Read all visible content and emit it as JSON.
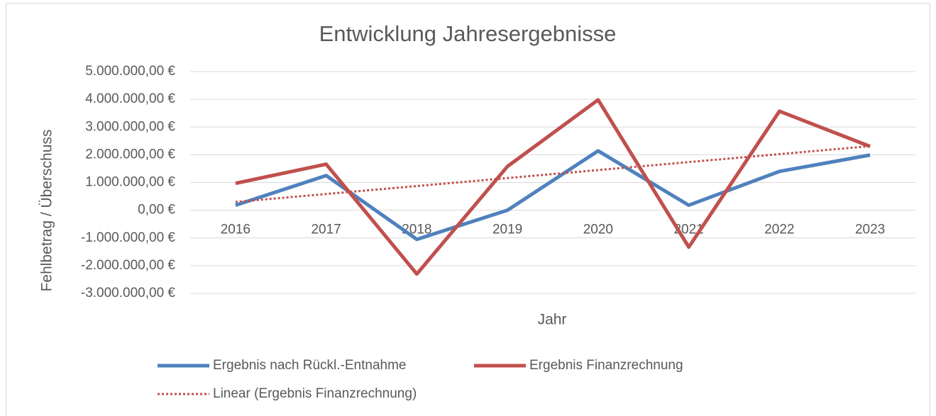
{
  "chart_data": {
    "type": "line",
    "title": "Entwicklung Jahresergebnisse",
    "x_label": "Jahr",
    "y_label": "Fehlbetrag / Überschuss",
    "categories": [
      "2016",
      "2017",
      "2018",
      "2019",
      "2020",
      "2021",
      "2022",
      "2023"
    ],
    "series": [
      {
        "name": "Ergebnis nach Rückl.-Entnahme",
        "color": "#4f81bd",
        "style": "solid",
        "values": [
          180000,
          1250000,
          -1050000,
          0,
          2140000,
          180000,
          1400000,
          1990000
        ]
      },
      {
        "name": "Ergebnis Finanzrechnung",
        "color": "#c0504d",
        "style": "solid",
        "values": [
          970000,
          1660000,
          -2300000,
          1580000,
          3980000,
          -1330000,
          3570000,
          2300000
        ]
      },
      {
        "name": "Linear (Ergebnis Finanzrechnung)",
        "color": "#c0504d",
        "style": "dotted",
        "values": [
          297000,
          585000,
          872000,
          1160000,
          1448000,
          1736000,
          2023000,
          2311000
        ]
      }
    ],
    "ylim": [
      -3000000,
      5000000
    ],
    "yticks": [
      {
        "value": 5000000,
        "label": "5.000.000,00 €"
      },
      {
        "value": 4000000,
        "label": "4.000.000,00 €"
      },
      {
        "value": 3000000,
        "label": "3.000.000,00 €"
      },
      {
        "value": 2000000,
        "label": "2.000.000,00 €"
      },
      {
        "value": 1000000,
        "label": "1.000.000,00 €"
      },
      {
        "value": 0,
        "label": "0,00 €"
      },
      {
        "value": -1000000,
        "label": "-1.000.000,00 €"
      },
      {
        "value": -2000000,
        "label": "-2.000.000,00 €"
      },
      {
        "value": -3000000,
        "label": "-3.000.000,00 €"
      }
    ],
    "grid": true,
    "legend": "bottom"
  }
}
